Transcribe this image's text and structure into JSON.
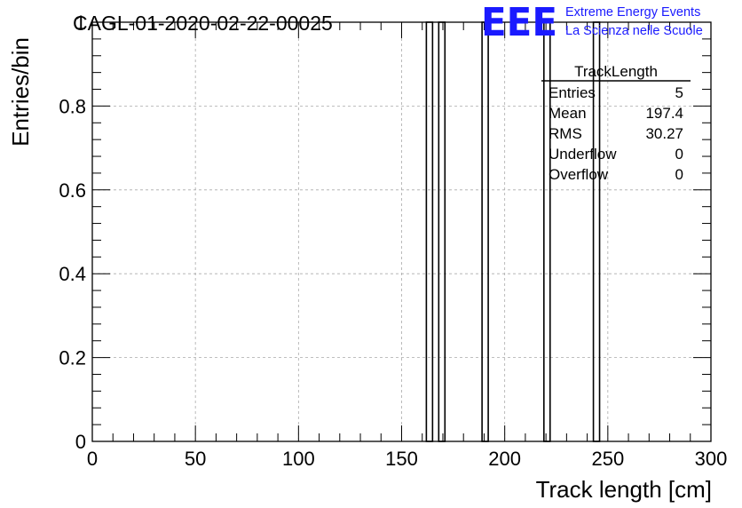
{
  "title": "CAGL-01-2020-02-22-00025",
  "logo": {
    "mark": "EEE",
    "line1": "Extreme Energy Events",
    "line2": "La Scienza nelle Scuole",
    "color": "#1a1aff"
  },
  "stats_box": {
    "title": "TrackLength",
    "rows": [
      {
        "label": "Entries",
        "value": "5"
      },
      {
        "label": "Mean",
        "value": "197.4"
      },
      {
        "label": "RMS",
        "value": "30.27"
      },
      {
        "label": "Underflow",
        "value": "0"
      },
      {
        "label": "Overflow",
        "value": "0"
      }
    ]
  },
  "chart_data": {
    "type": "bar",
    "histogram": true,
    "xlabel": "Track length [cm]",
    "ylabel": "Entries/bin",
    "xlim": [
      0,
      300
    ],
    "ylim": [
      0,
      1
    ],
    "bin_width": 3,
    "bins": [
      {
        "x_low": 162,
        "x_high": 165,
        "value": 1
      },
      {
        "x_low": 168,
        "x_high": 171,
        "value": 1
      },
      {
        "x_low": 189,
        "x_high": 192,
        "value": 1
      },
      {
        "x_low": 219,
        "x_high": 222,
        "value": 1
      },
      {
        "x_low": 243,
        "x_high": 246,
        "value": 1
      }
    ],
    "x_ticks": [
      "0",
      "50",
      "100",
      "150",
      "200",
      "250",
      "300"
    ],
    "y_ticks": [
      "0",
      "0.2",
      "0.4",
      "0.6",
      "0.8",
      "1"
    ],
    "grid": true
  }
}
